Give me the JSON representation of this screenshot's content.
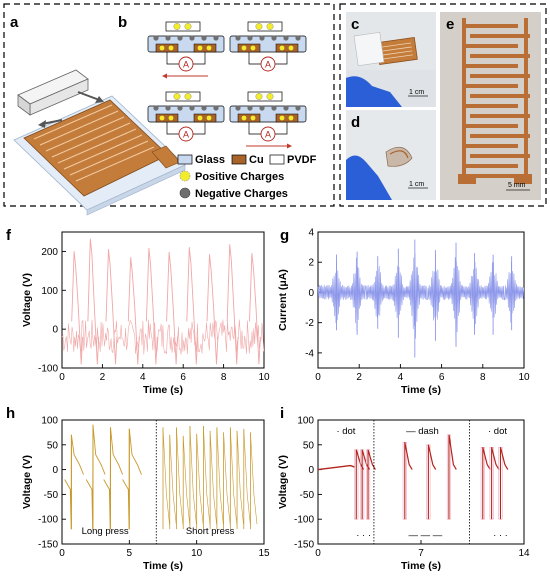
{
  "panels": {
    "a": "a",
    "b": "b",
    "c": "c",
    "d": "d",
    "e": "e",
    "f": "f",
    "g": "g",
    "h": "h",
    "i": "i"
  },
  "legend_b": {
    "glass": "Glass",
    "cu": "Cu",
    "pvdf": "PVDF",
    "positive": "Positive Charges",
    "negative": "Negative Charges"
  },
  "ammeter": "A",
  "scale_bars": {
    "c": "1 cm",
    "d": "1 cm",
    "e": "5 mm"
  },
  "colors": {
    "copper": "#b8702e",
    "glass": "#c9daf0",
    "positive": "#f3ec2b",
    "negative": "#6f6f6f",
    "voltage_f": "#f1a7a7",
    "current_g": "#8d97ea",
    "voltage_h": "#c99a2e",
    "voltage_i": "#b3241e",
    "glove": "#2a5fd8"
  },
  "chart_data": [
    {
      "id": "f",
      "type": "line",
      "xlabel": "Time (s)",
      "ylabel": "Voltage (V)",
      "xlim": [
        0,
        10
      ],
      "ylim": [
        -100,
        250
      ],
      "xticks": [
        0,
        2,
        4,
        6,
        8,
        10
      ],
      "yticks": [
        -100,
        0,
        100,
        200
      ],
      "peaks": [
        {
          "t": 0.6,
          "v": 200
        },
        {
          "t": 1.4,
          "v": 232
        },
        {
          "t": 2.3,
          "v": 205
        },
        {
          "t": 3.4,
          "v": 185
        },
        {
          "t": 4.3,
          "v": 208
        },
        {
          "t": 5.3,
          "v": 198
        },
        {
          "t": 6.3,
          "v": 210
        },
        {
          "t": 7.3,
          "v": 192
        },
        {
          "t": 8.3,
          "v": 218
        },
        {
          "t": 9.4,
          "v": 195
        }
      ],
      "min": -90
    },
    {
      "id": "g",
      "type": "line",
      "xlabel": "Time (s)",
      "ylabel": "Current (μA)",
      "xlim": [
        0,
        10
      ],
      "ylim": [
        -5,
        4
      ],
      "xticks": [
        0,
        2,
        4,
        6,
        8,
        10
      ],
      "yticks": [
        -4,
        -2,
        0,
        2,
        4
      ],
      "bursts": [
        {
          "t": 0.9,
          "hi": 2.5,
          "lo": -2.5
        },
        {
          "t": 1.9,
          "hi": 2.7,
          "lo": -2.8
        },
        {
          "t": 2.9,
          "hi": 2.4,
          "lo": -2.4
        },
        {
          "t": 3.9,
          "hi": 2.9,
          "lo": -3.0
        },
        {
          "t": 4.7,
          "hi": 3.5,
          "lo": -4.3
        },
        {
          "t": 5.7,
          "hi": 2.8,
          "lo": -3.2
        },
        {
          "t": 6.7,
          "hi": 3.3,
          "lo": -3.6
        },
        {
          "t": 7.6,
          "hi": 2.6,
          "lo": -2.8
        },
        {
          "t": 8.5,
          "hi": 2.5,
          "lo": -2.8
        },
        {
          "t": 9.4,
          "hi": 2.4,
          "lo": -2.5
        }
      ]
    },
    {
      "id": "h",
      "type": "line",
      "xlabel": "Time (s)",
      "ylabel": "Voltage (V)",
      "xlim": [
        0,
        15
      ],
      "ylim": [
        -150,
        100
      ],
      "xticks": [
        0,
        5,
        10,
        15
      ],
      "yticks": [
        -150,
        -100,
        -50,
        0,
        50,
        100
      ],
      "divider_t": 7.0,
      "annotations": [
        "Long press",
        "Short press"
      ],
      "long_press_peaks": [
        {
          "t": 0.7,
          "v": 70
        },
        {
          "t": 2.3,
          "v": 90
        },
        {
          "t": 3.6,
          "v": 85
        },
        {
          "t": 5.0,
          "v": 82
        }
      ],
      "short_press_peaks": [
        {
          "t": 7.5,
          "v": 85
        },
        {
          "t": 8.0,
          "v": 70
        },
        {
          "t": 8.5,
          "v": 85
        },
        {
          "t": 9.0,
          "v": 68
        },
        {
          "t": 9.5,
          "v": 88
        },
        {
          "t": 10.0,
          "v": 72
        },
        {
          "t": 10.5,
          "v": 88
        },
        {
          "t": 11.0,
          "v": 78
        },
        {
          "t": 11.5,
          "v": 85
        },
        {
          "t": 12.0,
          "v": 75
        },
        {
          "t": 12.5,
          "v": 85
        },
        {
          "t": 13.0,
          "v": 78
        },
        {
          "t": 13.5,
          "v": 82
        },
        {
          "t": 14.0,
          "v": 75
        }
      ],
      "min": -120
    },
    {
      "id": "i",
      "type": "line",
      "xlabel": "Time (s)",
      "ylabel": "Voltage (V)",
      "xlim": [
        0,
        14
      ],
      "ylim": [
        -150,
        100
      ],
      "xticks": [
        0,
        7,
        14
      ],
      "yticks": [
        -150,
        -100,
        -50,
        0,
        50,
        100
      ],
      "dividers": [
        3.8,
        10.3
      ],
      "annotations": [
        "· dot",
        "— dash",
        "· dot"
      ],
      "symbols": [
        "· · ·",
        "— — —",
        "· · ·"
      ],
      "segments": [
        {
          "pulses": [
            {
              "t": 2.6,
              "v": 40
            },
            {
              "t": 3.0,
              "v": 40
            },
            {
              "t": 3.4,
              "v": 40
            }
          ],
          "min": -100
        },
        {
          "pulses": [
            {
              "t": 5.9,
              "v": 55
            },
            {
              "t": 7.5,
              "v": 50
            },
            {
              "t": 8.9,
              "v": 70
            }
          ],
          "min": -100
        },
        {
          "pulses": [
            {
              "t": 11.2,
              "v": 45
            },
            {
              "t": 11.8,
              "v": 45
            },
            {
              "t": 12.4,
              "v": 45
            }
          ],
          "min": -100
        }
      ]
    }
  ]
}
